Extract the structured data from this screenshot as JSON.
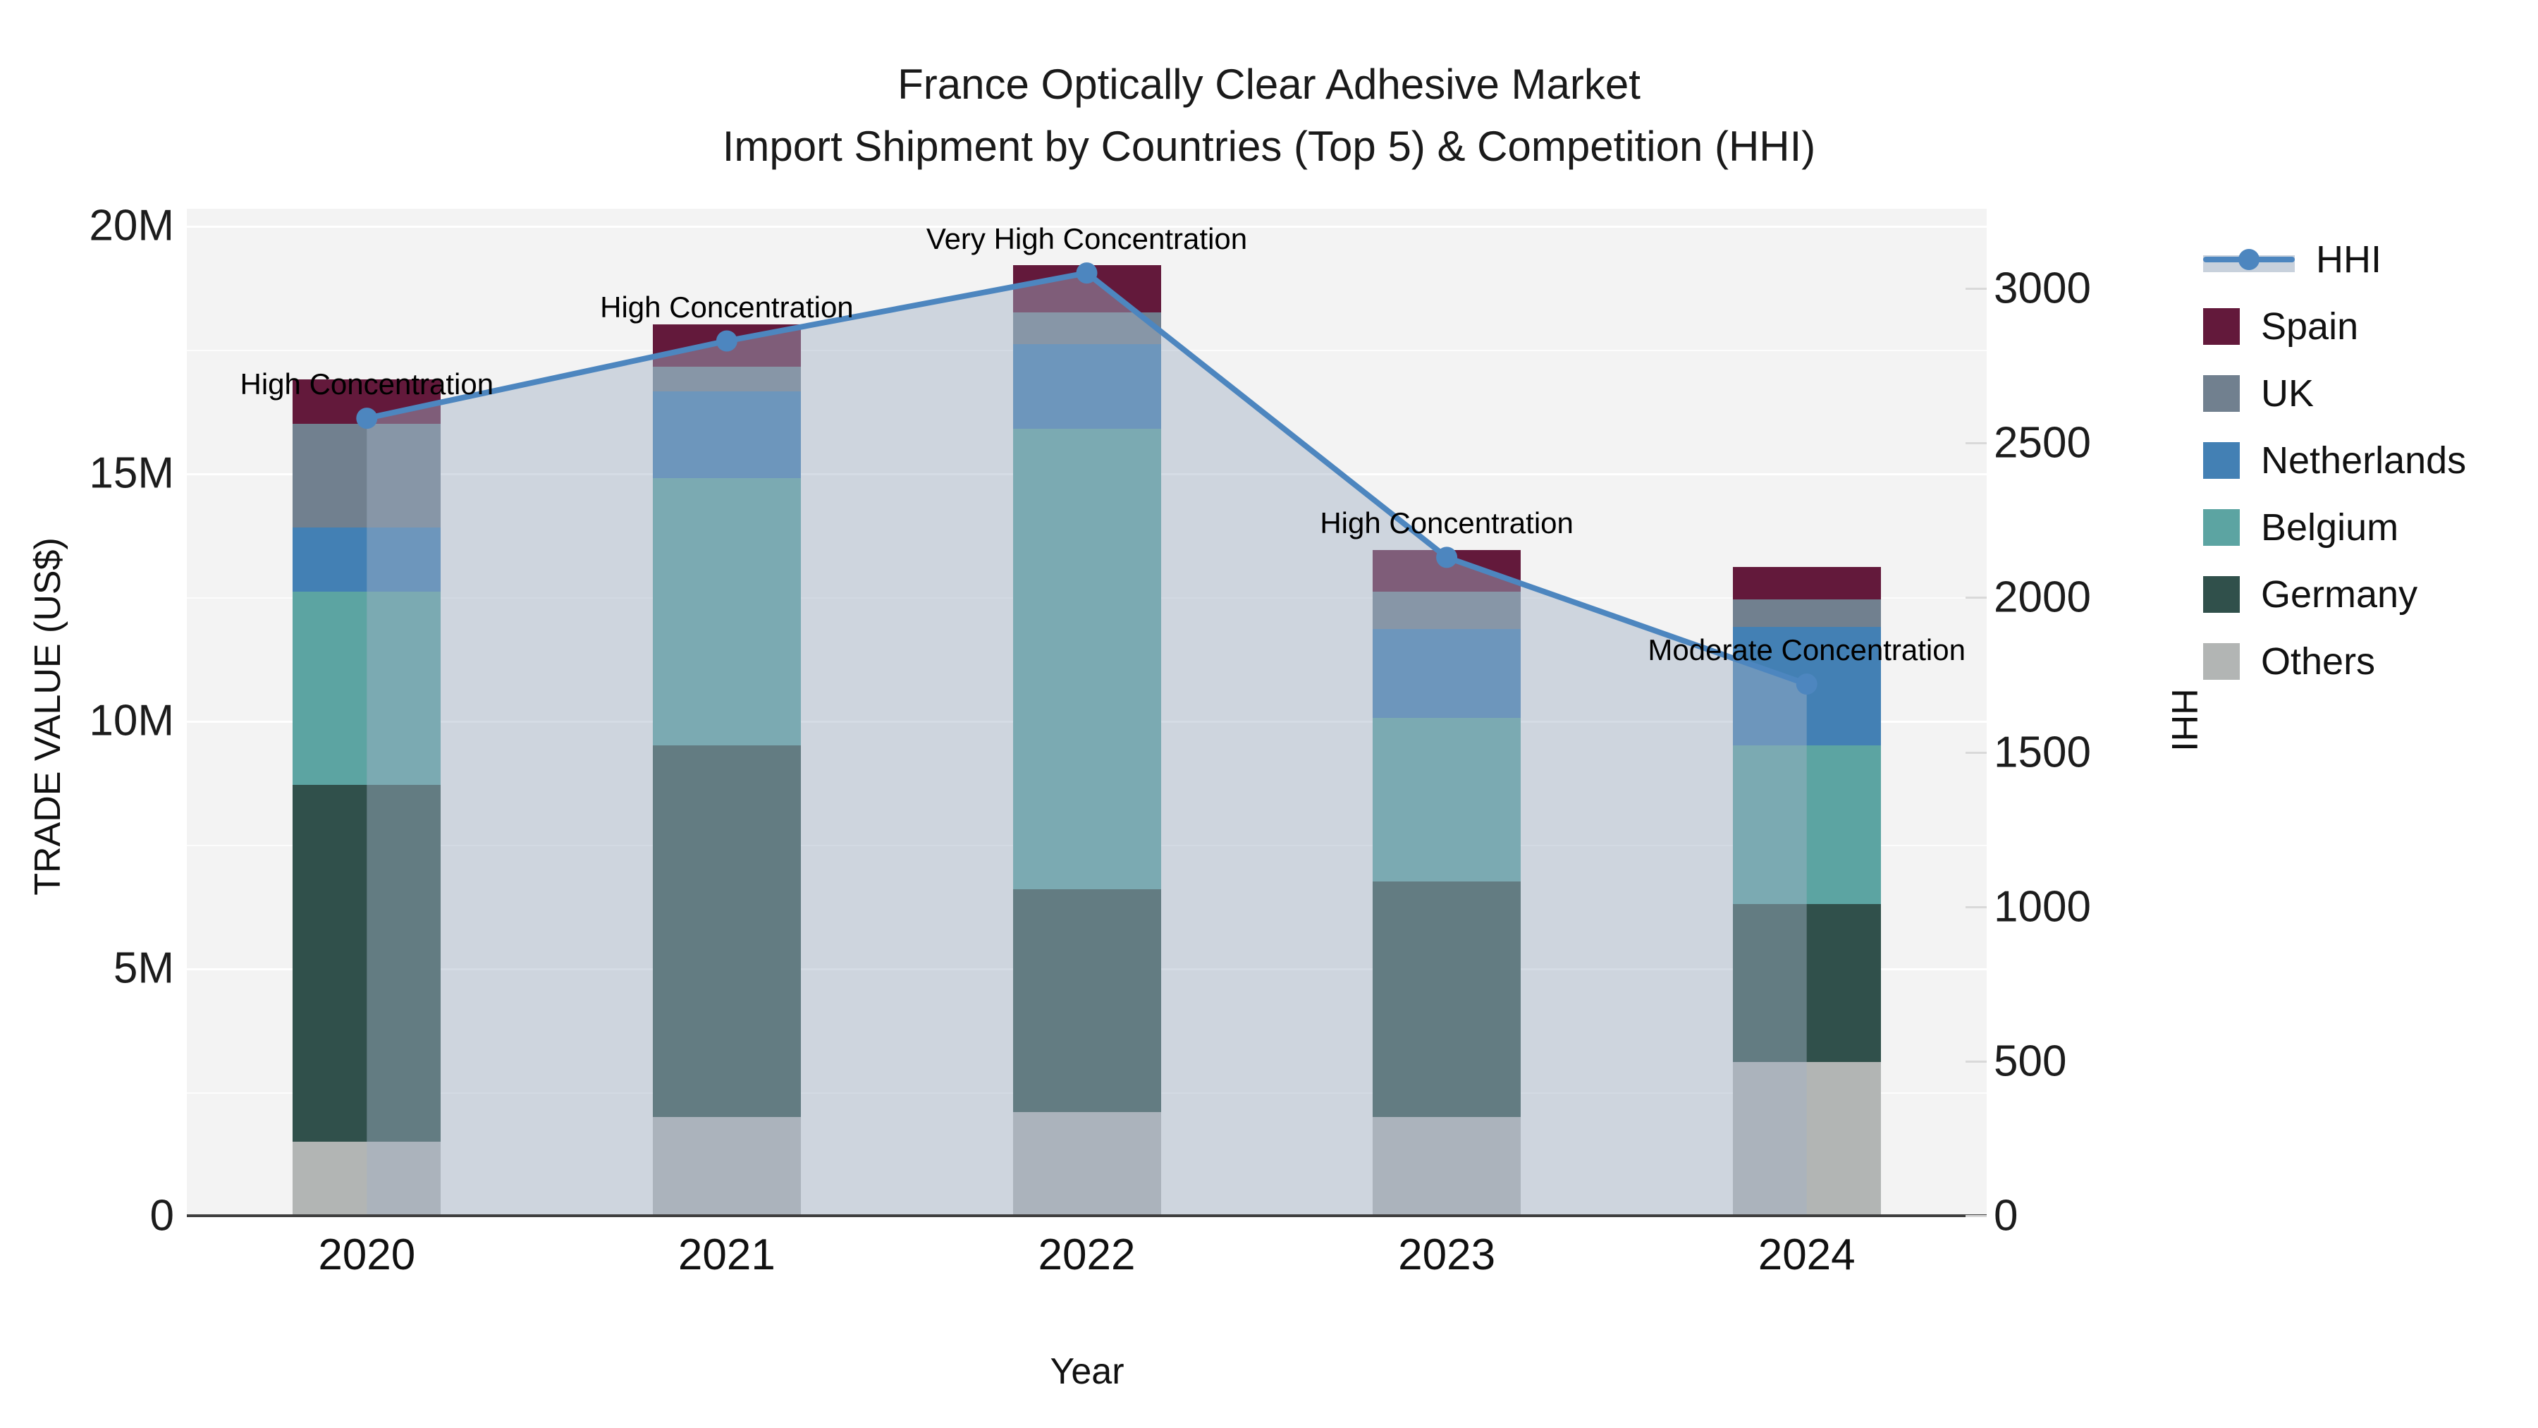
{
  "title": {
    "line1": "France Optically Clear Adhesive Market",
    "line2": "Import Shipment by Countries (Top 5) & Competition (HHI)"
  },
  "axes": {
    "x_title": "Year",
    "y_left_title": "TRADE VALUE (US$)",
    "y_right_title": "HHI",
    "y_left_ticks": [
      {
        "label": "0",
        "value": 0
      },
      {
        "label": "5M",
        "value": 5
      },
      {
        "label": "10M",
        "value": 10
      },
      {
        "label": "15M",
        "value": 15
      },
      {
        "label": "20M",
        "value": 20
      }
    ],
    "y_right_ticks": [
      {
        "label": "0",
        "value": 0
      },
      {
        "label": "500",
        "value": 500
      },
      {
        "label": "1000",
        "value": 1000
      },
      {
        "label": "1500",
        "value": 1500
      },
      {
        "label": "2000",
        "value": 2000
      },
      {
        "label": "2500",
        "value": 2500
      },
      {
        "label": "3000",
        "value": 3000
      }
    ]
  },
  "chart_data": {
    "type": "stacked-bar+line (dual axis)",
    "categories": [
      "2020",
      "2021",
      "2022",
      "2023",
      "2024"
    ],
    "xlabel": "Year",
    "ylabel_left": "TRADE VALUE (US$)",
    "ylabel_right": "HHI",
    "ylim_left_millions": [
      0,
      20
    ],
    "ylim_right": [
      0,
      3000
    ],
    "grid": true,
    "legend_position": "right",
    "stack_order_bottom_to_top": [
      "Others",
      "Germany",
      "Belgium",
      "Netherlands",
      "UK",
      "Spain"
    ],
    "series": [
      {
        "name": "Others",
        "color": "#b2b5b4",
        "values_millions_usd": [
          1.5,
          2.0,
          2.1,
          2.0,
          3.1
        ]
      },
      {
        "name": "Germany",
        "color": "#30504b",
        "values_millions_usd": [
          7.2,
          7.5,
          4.5,
          4.75,
          3.2
        ]
      },
      {
        "name": "Belgium",
        "color": "#5ca4a2",
        "values_millions_usd": [
          3.9,
          5.4,
          9.3,
          3.3,
          3.2
        ]
      },
      {
        "name": "Netherlands",
        "color": "#4380b4",
        "values_millions_usd": [
          1.3,
          1.75,
          1.7,
          1.8,
          2.4
        ]
      },
      {
        "name": "UK",
        "color": "#71808f",
        "values_millions_usd": [
          2.1,
          0.5,
          0.65,
          0.75,
          0.55
        ]
      },
      {
        "name": "Spain",
        "color": "#63193b",
        "values_millions_usd": [
          0.9,
          0.85,
          0.95,
          0.85,
          0.65
        ]
      }
    ],
    "totals_millions_usd": [
      16.9,
      18.0,
      19.2,
      13.45,
      13.1
    ],
    "line": {
      "name": "HHI",
      "color": "#4d86bf",
      "area_fill_color": "rgba(161,177,197,0.45)",
      "values": [
        2580,
        2830,
        3050,
        2130,
        1720
      ]
    },
    "annotations": [
      {
        "x": "2020",
        "text": "High Concentration"
      },
      {
        "x": "2021",
        "text": "High Concentration"
      },
      {
        "x": "2022",
        "text": "Very High Concentration"
      },
      {
        "x": "2023",
        "text": "High Concentration"
      },
      {
        "x": "2024",
        "text": "Moderate Concentration"
      }
    ]
  },
  "legend": {
    "items": [
      {
        "label": "HHI",
        "type": "line",
        "color": "#4d86bf"
      },
      {
        "label": "Spain",
        "type": "swatch",
        "color": "#63193b"
      },
      {
        "label": "UK",
        "type": "swatch",
        "color": "#71808f"
      },
      {
        "label": "Netherlands",
        "type": "swatch",
        "color": "#4380b4"
      },
      {
        "label": "Belgium",
        "type": "swatch",
        "color": "#5ca4a2"
      },
      {
        "label": "Germany",
        "type": "swatch",
        "color": "#30504b"
      },
      {
        "label": "Others",
        "type": "swatch",
        "color": "#b2b5b4"
      }
    ]
  }
}
